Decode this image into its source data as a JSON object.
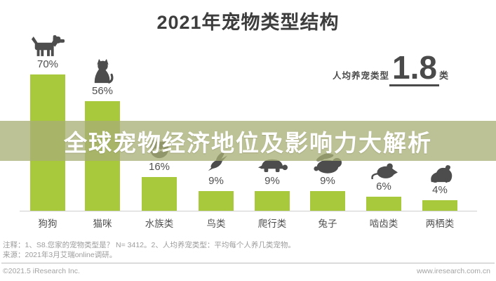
{
  "title": "2021年宠物类型结构",
  "banner": {
    "text": "全球宠物经济地位及影响力大解析"
  },
  "stat": {
    "label": "人均养宠类型",
    "value": "1.8",
    "unit": "类"
  },
  "chart_data": {
    "type": "bar",
    "title": "2021年宠物类型结构",
    "categories": [
      "狗狗",
      "猫咪",
      "水族类",
      "鸟类",
      "爬行类",
      "兔子",
      "啮齿类",
      "两栖类"
    ],
    "values": [
      70,
      56,
      16,
      9,
      9,
      9,
      6,
      4
    ],
    "value_labels": [
      "70%",
      "56%",
      "16%",
      "9%",
      "9%",
      "9%",
      "6%",
      "4%"
    ],
    "unit": "%",
    "ylim": [
      0,
      100
    ],
    "grid": false,
    "legend": "none",
    "bar_color": "#a8c93c",
    "annotation": "人均养宠类型 1.8 类",
    "icons": [
      "dog-icon",
      "cat-icon",
      "fishbowl-icon",
      "bird-icon",
      "turtle-icon",
      "rabbit-icon",
      "mouse-icon",
      "frog-icon"
    ]
  },
  "notes": {
    "line1": "注释：1、S8.您家的宠物类型是？ N= 3412。2、人均养宠类型：平均每个人养几类宠物。",
    "line2": "来源：2021年3月艾瑞online调研。"
  },
  "footer": {
    "left": "©2021.5 iResearch Inc.",
    "right": "www.iresearch.com.cn"
  },
  "colors": {
    "bar": "#a8c93c",
    "banner_overlay": "rgba(168,174,117,0.76)",
    "icon": "#4d4d4d",
    "title_text": "#3d3d3d",
    "note_text": "#9c9c9c"
  }
}
